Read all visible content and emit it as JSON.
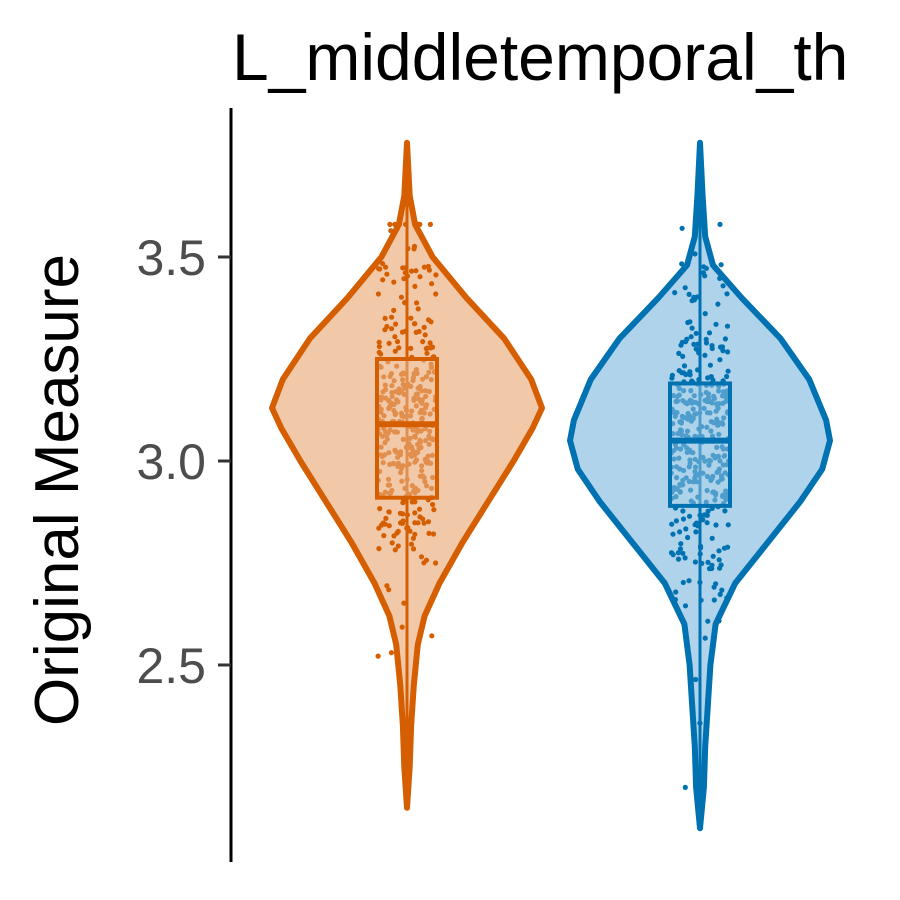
{
  "chart_data": {
    "type": "violin",
    "title": "L_middletemporal_th",
    "xlabel": "",
    "ylabel": "Original Measure",
    "ylim": [
      2.0,
      3.9
    ],
    "yticks": [
      2.5,
      3.0,
      3.5
    ],
    "ytick_labels": [
      "2.5",
      "3.0",
      "3.5"
    ],
    "grid": false,
    "legend": "none",
    "series": [
      {
        "color": "#D55E00",
        "fill": "#F2C9A8",
        "min": 2.15,
        "max": 3.78,
        "q1": 2.91,
        "median": 3.09,
        "q3": 3.25,
        "whisker_low": 2.15,
        "whisker_high": 3.78,
        "density": [
          [
            2.15,
            0.0
          ],
          [
            2.25,
            0.02
          ],
          [
            2.35,
            0.03
          ],
          [
            2.45,
            0.05
          ],
          [
            2.55,
            0.08
          ],
          [
            2.62,
            0.13
          ],
          [
            2.7,
            0.24
          ],
          [
            2.8,
            0.41
          ],
          [
            2.9,
            0.6
          ],
          [
            3.0,
            0.79
          ],
          [
            3.08,
            0.93
          ],
          [
            3.13,
            1.0
          ],
          [
            3.2,
            0.92
          ],
          [
            3.3,
            0.72
          ],
          [
            3.4,
            0.44
          ],
          [
            3.5,
            0.19
          ],
          [
            3.58,
            0.06
          ],
          [
            3.65,
            0.02
          ],
          [
            3.78,
            0.0
          ]
        ]
      },
      {
        "color": "#0072B2",
        "fill": "#AED3EA",
        "min": 2.1,
        "max": 3.78,
        "q1": 2.89,
        "median": 3.05,
        "q3": 3.19,
        "whisker_low": 2.1,
        "whisker_high": 3.78,
        "density": [
          [
            2.1,
            0.0
          ],
          [
            2.2,
            0.03
          ],
          [
            2.3,
            0.04
          ],
          [
            2.4,
            0.06
          ],
          [
            2.5,
            0.08
          ],
          [
            2.6,
            0.12
          ],
          [
            2.7,
            0.27
          ],
          [
            2.8,
            0.52
          ],
          [
            2.9,
            0.77
          ],
          [
            2.98,
            0.94
          ],
          [
            3.05,
            1.0
          ],
          [
            3.1,
            0.97
          ],
          [
            3.2,
            0.84
          ],
          [
            3.3,
            0.62
          ],
          [
            3.4,
            0.32
          ],
          [
            3.48,
            0.1
          ],
          [
            3.55,
            0.04
          ],
          [
            3.65,
            0.02
          ],
          [
            3.78,
            0.0
          ]
        ]
      }
    ]
  }
}
